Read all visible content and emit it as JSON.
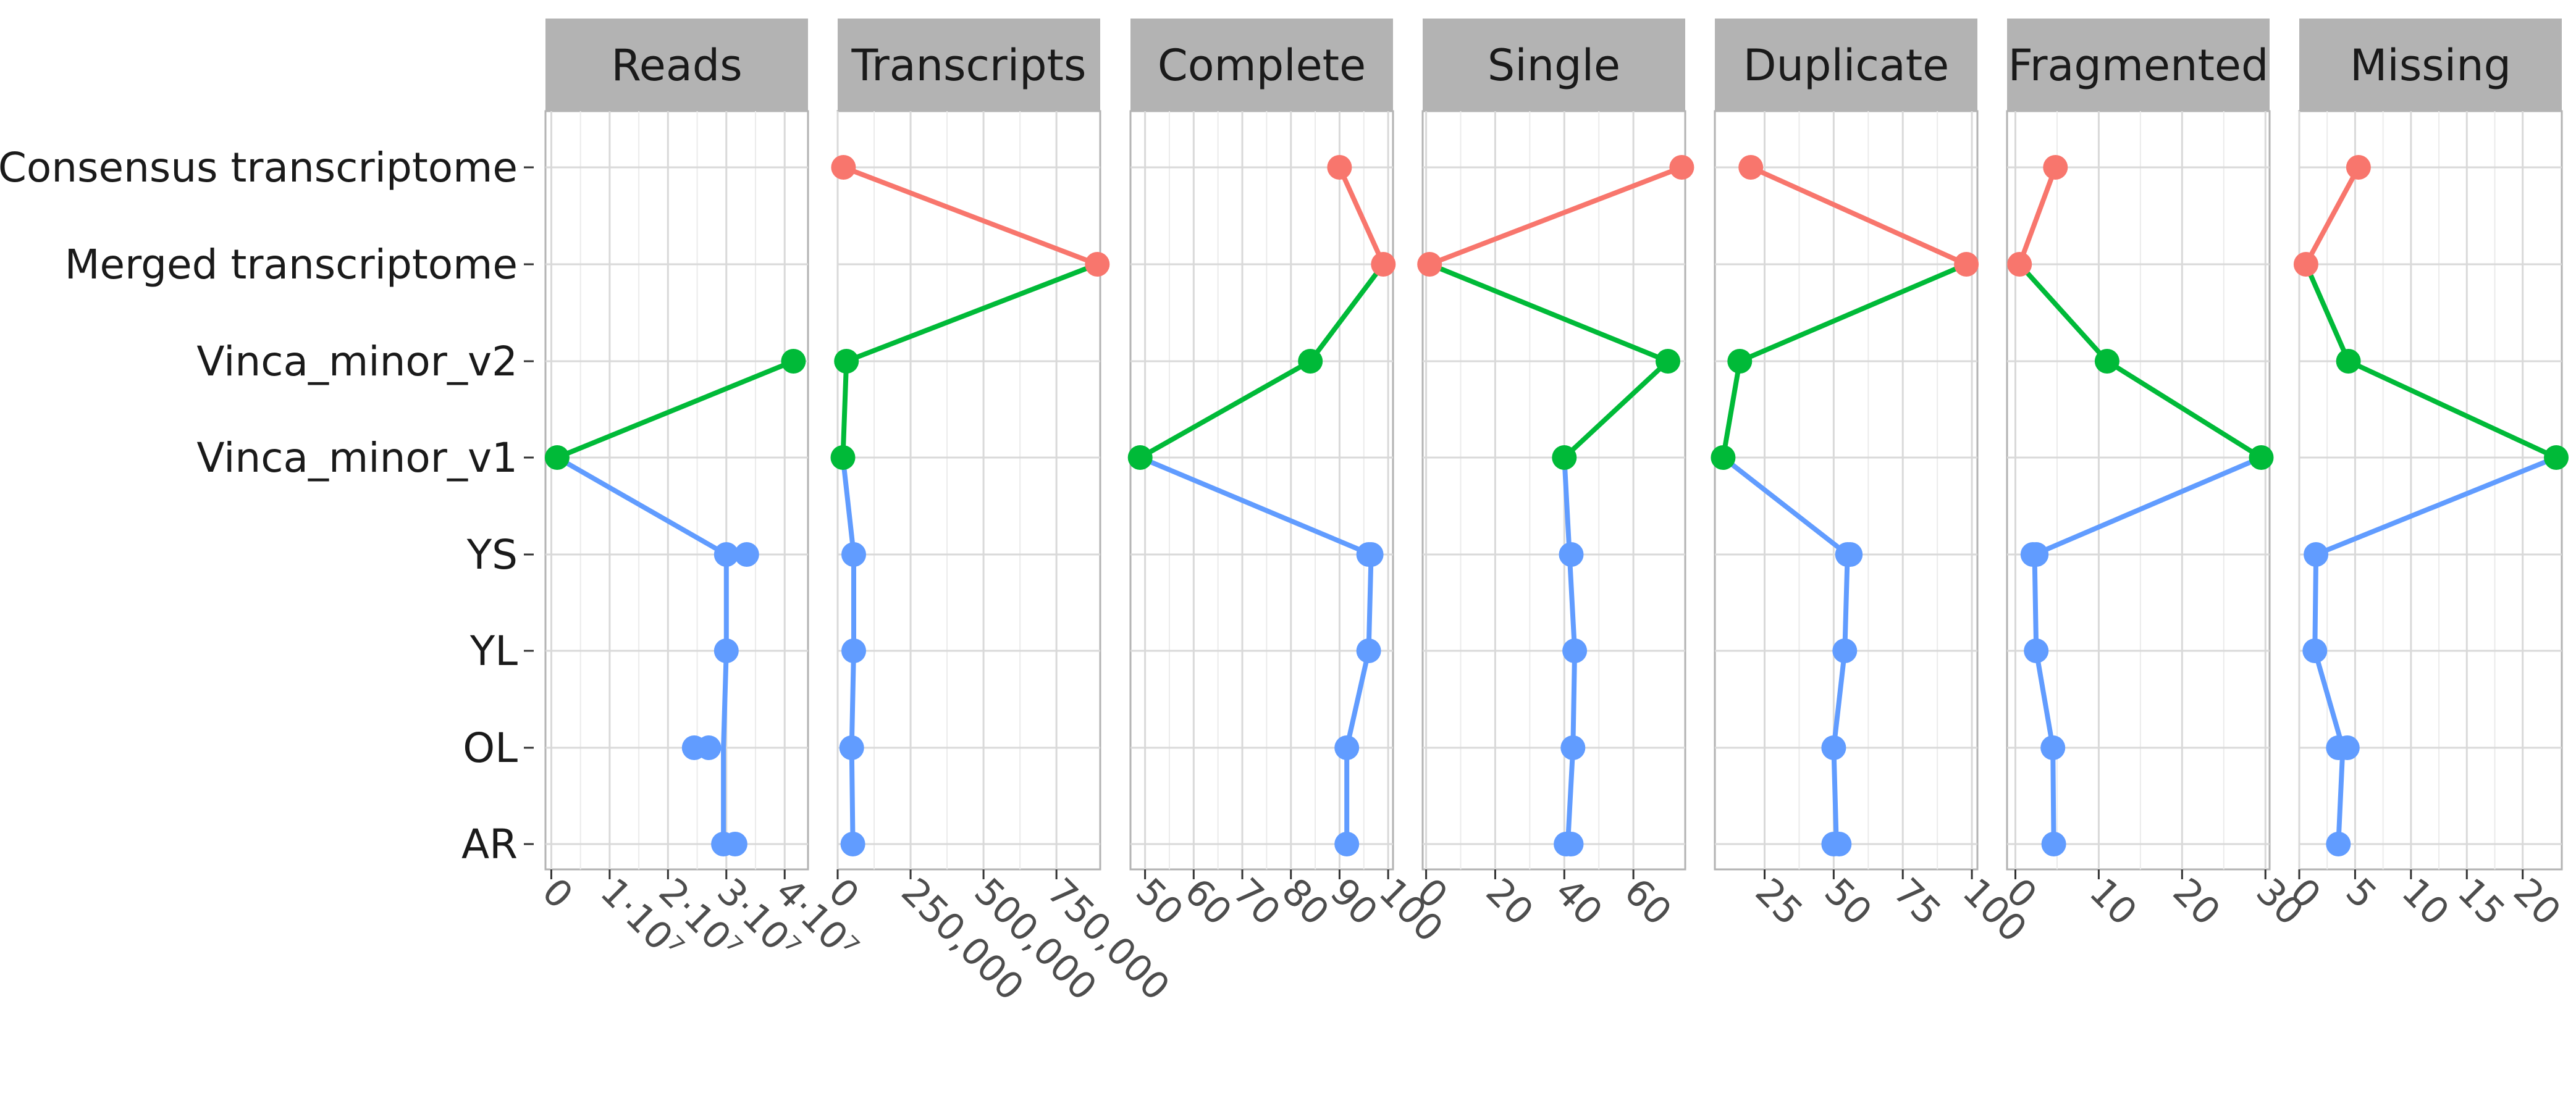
{
  "chart_data": {
    "type": "line",
    "orientation": "horizontal",
    "categories": [
      "Consensus transcriptome",
      "Merged transcriptome",
      "Vinca_minor_v2",
      "Vinca_minor_v1",
      "YS",
      "YL",
      "OL",
      "AR"
    ],
    "grid": true,
    "legend": "none",
    "colors": {
      "consensus": "#F8766D",
      "reference": "#00BA38",
      "samples": "#619CFF"
    },
    "panels": [
      {
        "title": "Reads",
        "xlim": [
          -1000000.0,
          44000000.0
        ],
        "ticks": [
          {
            "v": 0,
            "label": "0"
          },
          {
            "v": 10000000.0,
            "label": "1·10⁷"
          },
          {
            "v": 20000000.0,
            "label": "2·10⁷"
          },
          {
            "v": 30000000.0,
            "label": "3·10⁷"
          },
          {
            "v": 40000000.0,
            "label": "4·10⁷"
          }
        ],
        "points": [
          {
            "row": 2,
            "x": 41500000.0,
            "color": "reference"
          },
          {
            "row": 3,
            "x": 1000000.0,
            "color": "reference"
          },
          {
            "row": 4,
            "x": 30000000.0,
            "color": "samples"
          },
          {
            "row": 4,
            "x": 33500000.0,
            "color": "samples"
          },
          {
            "row": 5,
            "x": 30000000.0,
            "color": "samples"
          },
          {
            "row": 6,
            "x": 24500000.0,
            "color": "samples"
          },
          {
            "row": 6,
            "x": 27000000.0,
            "color": "samples"
          },
          {
            "row": 7,
            "x": 29500000.0,
            "color": "samples"
          },
          {
            "row": 7,
            "x": 31500000.0,
            "color": "samples"
          }
        ],
        "paths": [
          {
            "color": "reference",
            "pts": [
              [
                2,
                41500000.0
              ],
              [
                3,
                1000000.0
              ]
            ]
          },
          {
            "color": "samples",
            "pts": [
              [
                3,
                1000000.0
              ],
              [
                4,
                30000000.0
              ],
              [
                5,
                30000000.0
              ],
              [
                6,
                29500000.0
              ],
              [
                7,
                29500000.0
              ]
            ]
          }
        ]
      },
      {
        "title": "Transcripts",
        "xlim": [
          0,
          900000
        ],
        "ticks": [
          {
            "v": 0,
            "label": "0"
          },
          {
            "v": 250000,
            "label": "250,000"
          },
          {
            "v": 500000,
            "label": "500,000"
          },
          {
            "v": 750000,
            "label": "750,000"
          }
        ],
        "points": [
          {
            "row": 0,
            "x": 20000,
            "color": "consensus"
          },
          {
            "row": 1,
            "x": 890000,
            "color": "consensus"
          },
          {
            "row": 2,
            "x": 30000,
            "color": "reference"
          },
          {
            "row": 3,
            "x": 18000,
            "color": "reference"
          },
          {
            "row": 4,
            "x": 55000,
            "color": "samples"
          },
          {
            "row": 5,
            "x": 55000,
            "color": "samples"
          },
          {
            "row": 6,
            "x": 48000,
            "color": "samples"
          },
          {
            "row": 7,
            "x": 52000,
            "color": "samples"
          }
        ],
        "paths": [
          {
            "color": "consensus",
            "pts": [
              [
                0,
                20000
              ],
              [
                1,
                890000
              ]
            ]
          },
          {
            "color": "reference",
            "pts": [
              [
                1,
                890000
              ],
              [
                2,
                30000
              ],
              [
                3,
                18000
              ]
            ]
          },
          {
            "color": "samples",
            "pts": [
              [
                3,
                18000
              ],
              [
                4,
                55000
              ],
              [
                5,
                55000
              ],
              [
                6,
                48000
              ],
              [
                7,
                52000
              ]
            ]
          }
        ]
      },
      {
        "title": "Complete",
        "xlim": [
          47,
          101
        ],
        "ticks": [
          {
            "v": 50,
            "label": "50"
          },
          {
            "v": 60,
            "label": "60"
          },
          {
            "v": 70,
            "label": "70"
          },
          {
            "v": 80,
            "label": "80"
          },
          {
            "v": 90,
            "label": "90"
          },
          {
            "v": 100,
            "label": "100"
          }
        ],
        "points": [
          {
            "row": 0,
            "x": 90,
            "color": "consensus"
          },
          {
            "row": 1,
            "x": 99,
            "color": "consensus"
          },
          {
            "row": 2,
            "x": 84,
            "color": "reference"
          },
          {
            "row": 3,
            "x": 49,
            "color": "reference"
          },
          {
            "row": 4,
            "x": 96.5,
            "color": "samples"
          },
          {
            "row": 4,
            "x": 96,
            "color": "samples"
          },
          {
            "row": 5,
            "x": 96,
            "color": "samples"
          },
          {
            "row": 6,
            "x": 91.5,
            "color": "samples"
          },
          {
            "row": 7,
            "x": 91.5,
            "color": "samples"
          }
        ],
        "paths": [
          {
            "color": "consensus",
            "pts": [
              [
                0,
                90
              ],
              [
                1,
                99
              ]
            ]
          },
          {
            "color": "reference",
            "pts": [
              [
                1,
                99
              ],
              [
                2,
                84
              ],
              [
                3,
                49
              ]
            ]
          },
          {
            "color": "samples",
            "pts": [
              [
                3,
                49
              ],
              [
                4,
                96.5
              ],
              [
                5,
                96
              ],
              [
                6,
                91.5
              ],
              [
                7,
                91.5
              ]
            ]
          }
        ]
      },
      {
        "title": "Single",
        "xlim": [
          -1,
          75
        ],
        "ticks": [
          {
            "v": 0,
            "label": "0"
          },
          {
            "v": 20,
            "label": "20"
          },
          {
            "v": 40,
            "label": "40"
          },
          {
            "v": 60,
            "label": "60"
          }
        ],
        "points": [
          {
            "row": 0,
            "x": 74,
            "color": "consensus"
          },
          {
            "row": 1,
            "x": 1,
            "color": "consensus"
          },
          {
            "row": 2,
            "x": 70,
            "color": "reference"
          },
          {
            "row": 3,
            "x": 40,
            "color": "reference"
          },
          {
            "row": 4,
            "x": 42,
            "color": "samples"
          },
          {
            "row": 5,
            "x": 43,
            "color": "samples"
          },
          {
            "row": 6,
            "x": 42.5,
            "color": "samples"
          },
          {
            "row": 7,
            "x": 40.5,
            "color": "samples"
          },
          {
            "row": 7,
            "x": 42,
            "color": "samples"
          }
        ],
        "paths": [
          {
            "color": "consensus",
            "pts": [
              [
                0,
                74
              ],
              [
                1,
                1
              ]
            ]
          },
          {
            "color": "reference",
            "pts": [
              [
                1,
                1
              ],
              [
                2,
                70
              ],
              [
                3,
                40
              ]
            ]
          },
          {
            "color": "samples",
            "pts": [
              [
                3,
                40
              ],
              [
                4,
                41.5
              ],
              [
                5,
                43
              ],
              [
                6,
                42.5
              ],
              [
                7,
                41
              ]
            ]
          }
        ]
      },
      {
        "title": "Duplicate",
        "xlim": [
          7,
          102
        ],
        "ticks": [
          {
            "v": 25,
            "label": "25"
          },
          {
            "v": 50,
            "label": "50"
          },
          {
            "v": 75,
            "label": "75"
          },
          {
            "v": 100,
            "label": "100"
          }
        ],
        "points": [
          {
            "row": 0,
            "x": 20,
            "color": "consensus"
          },
          {
            "row": 1,
            "x": 98,
            "color": "consensus"
          },
          {
            "row": 2,
            "x": 16,
            "color": "reference"
          },
          {
            "row": 3,
            "x": 10,
            "color": "reference"
          },
          {
            "row": 4,
            "x": 56,
            "color": "samples"
          },
          {
            "row": 4,
            "x": 55,
            "color": "samples"
          },
          {
            "row": 5,
            "x": 54,
            "color": "samples"
          },
          {
            "row": 6,
            "x": 50,
            "color": "samples"
          },
          {
            "row": 7,
            "x": 50,
            "color": "samples"
          },
          {
            "row": 7,
            "x": 52,
            "color": "samples"
          }
        ],
        "paths": [
          {
            "color": "consensus",
            "pts": [
              [
                0,
                20
              ],
              [
                1,
                98
              ]
            ]
          },
          {
            "color": "reference",
            "pts": [
              [
                1,
                98
              ],
              [
                2,
                16
              ],
              [
                3,
                10
              ]
            ]
          },
          {
            "color": "samples",
            "pts": [
              [
                3,
                10
              ],
              [
                4,
                55
              ],
              [
                5,
                54
              ],
              [
                6,
                50
              ],
              [
                7,
                51
              ]
            ]
          }
        ]
      },
      {
        "title": "Fragmented",
        "xlim": [
          -1,
          30.5
        ],
        "ticks": [
          {
            "v": 0,
            "label": "0"
          },
          {
            "v": 10,
            "label": "10"
          },
          {
            "v": 20,
            "label": "20"
          },
          {
            "v": 30,
            "label": "30"
          }
        ],
        "points": [
          {
            "row": 0,
            "x": 4.8,
            "color": "consensus"
          },
          {
            "row": 1,
            "x": 0.5,
            "color": "consensus"
          },
          {
            "row": 2,
            "x": 11,
            "color": "reference"
          },
          {
            "row": 3,
            "x": 29.5,
            "color": "reference"
          },
          {
            "row": 4,
            "x": 2.1,
            "color": "samples"
          },
          {
            "row": 4,
            "x": 2.5,
            "color": "samples"
          },
          {
            "row": 5,
            "x": 2.5,
            "color": "samples"
          },
          {
            "row": 6,
            "x": 4.5,
            "color": "samples"
          },
          {
            "row": 7,
            "x": 4.6,
            "color": "samples"
          }
        ],
        "paths": [
          {
            "color": "consensus",
            "pts": [
              [
                0,
                4.8
              ],
              [
                1,
                0.5
              ]
            ]
          },
          {
            "color": "reference",
            "pts": [
              [
                1,
                0.5
              ],
              [
                2,
                11
              ],
              [
                3,
                29.5
              ]
            ]
          },
          {
            "color": "samples",
            "pts": [
              [
                3,
                29.5
              ],
              [
                4,
                2.3
              ],
              [
                5,
                2.5
              ],
              [
                6,
                4.5
              ],
              [
                7,
                4.6
              ]
            ]
          }
        ]
      },
      {
        "title": "Missing",
        "xlim": [
          0,
          23.5
        ],
        "ticks": [
          {
            "v": 0,
            "label": "0"
          },
          {
            "v": 5,
            "label": "5"
          },
          {
            "v": 10,
            "label": "10"
          },
          {
            "v": 15,
            "label": "15"
          },
          {
            "v": 20,
            "label": "20"
          }
        ],
        "points": [
          {
            "row": 0,
            "x": 5.3,
            "color": "consensus"
          },
          {
            "row": 1,
            "x": 0.6,
            "color": "consensus"
          },
          {
            "row": 2,
            "x": 4.4,
            "color": "reference"
          },
          {
            "row": 3,
            "x": 23,
            "color": "reference"
          },
          {
            "row": 4,
            "x": 1.5,
            "color": "samples"
          },
          {
            "row": 5,
            "x": 1.4,
            "color": "samples"
          },
          {
            "row": 6,
            "x": 3.5,
            "color": "samples"
          },
          {
            "row": 6,
            "x": 4.3,
            "color": "samples"
          },
          {
            "row": 7,
            "x": 3.5,
            "color": "samples"
          }
        ],
        "paths": [
          {
            "color": "consensus",
            "pts": [
              [
                0,
                5.3
              ],
              [
                1,
                0.6
              ]
            ]
          },
          {
            "color": "reference",
            "pts": [
              [
                1,
                0.6
              ],
              [
                2,
                4.4
              ],
              [
                3,
                23
              ]
            ]
          },
          {
            "color": "samples",
            "pts": [
              [
                3,
                23
              ],
              [
                4,
                1.5
              ],
              [
                5,
                1.4
              ],
              [
                6,
                3.9
              ],
              [
                7,
                3.5
              ]
            ]
          }
        ]
      }
    ]
  }
}
